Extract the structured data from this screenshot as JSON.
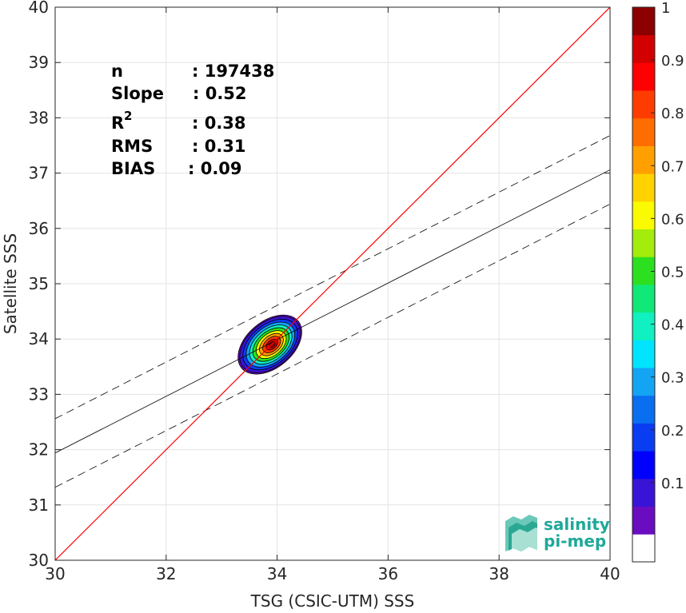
{
  "chart_data": {
    "type": "density-scatter",
    "xlabel": "TSG (CSIC-UTM) SSS",
    "ylabel": "Satellite SSS",
    "xlim": [
      30,
      40
    ],
    "ylim": [
      30,
      40
    ],
    "x_ticks": [
      "30",
      "32",
      "34",
      "36",
      "38",
      "40"
    ],
    "y_ticks": [
      "30",
      "31",
      "32",
      "33",
      "34",
      "35",
      "36",
      "37",
      "38",
      "39",
      "40"
    ],
    "grid": true,
    "stats": [
      {
        "label": "n",
        "value": ": 197438"
      },
      {
        "label": "Slope",
        "value": ": 0.52"
      },
      {
        "label": "R",
        "superscript": "2",
        "value": ": 0.38"
      },
      {
        "label": "RMS",
        "value": ": 0.31"
      },
      {
        "label": "BIAS",
        "value": ": 0.09"
      }
    ],
    "identity_line": {
      "x": [
        30,
        40
      ],
      "y": [
        30,
        40
      ],
      "color": "#ff0000"
    },
    "regression_line": {
      "x": [
        30,
        40
      ],
      "y": [
        31.94,
        37.06
      ],
      "color": "#000000"
    },
    "regression_bounds": [
      {
        "x": [
          30,
          40
        ],
        "y": [
          32.56,
          37.68
        ]
      },
      {
        "x": [
          30,
          40
        ],
        "y": [
          31.32,
          36.44
        ]
      }
    ],
    "density_center": {
      "x": 33.87,
      "y": 33.9
    },
    "contour_levels": [
      0.05,
      0.1,
      0.2,
      0.3,
      0.4,
      0.5,
      0.6,
      0.7,
      0.8,
      0.9
    ],
    "colorbar": {
      "ticks": [
        "0.1",
        "0.2",
        "0.3",
        "0.4",
        "0.5",
        "0.6",
        "0.7",
        "0.8",
        "0.9",
        "1"
      ],
      "tick_values": [
        0.1,
        0.2,
        0.3,
        0.4,
        0.5,
        0.6,
        0.7,
        0.8,
        0.9,
        1.0
      ],
      "colors": [
        "#ffffff",
        "#6a0cc0",
        "#3a14d6",
        "#0000ff",
        "#0a3cf2",
        "#0a6ef0",
        "#14a4f4",
        "#00e4ff",
        "#10f0c0",
        "#10e878",
        "#2ce020",
        "#a4ec0c",
        "#fafa00",
        "#ffd200",
        "#ffa000",
        "#ff6c00",
        "#ff3c00",
        "#ff0000",
        "#d20000",
        "#8c0000"
      ]
    },
    "logo": {
      "line1": "salinity",
      "line2": "pi-mep",
      "color": "#20a898"
    }
  }
}
